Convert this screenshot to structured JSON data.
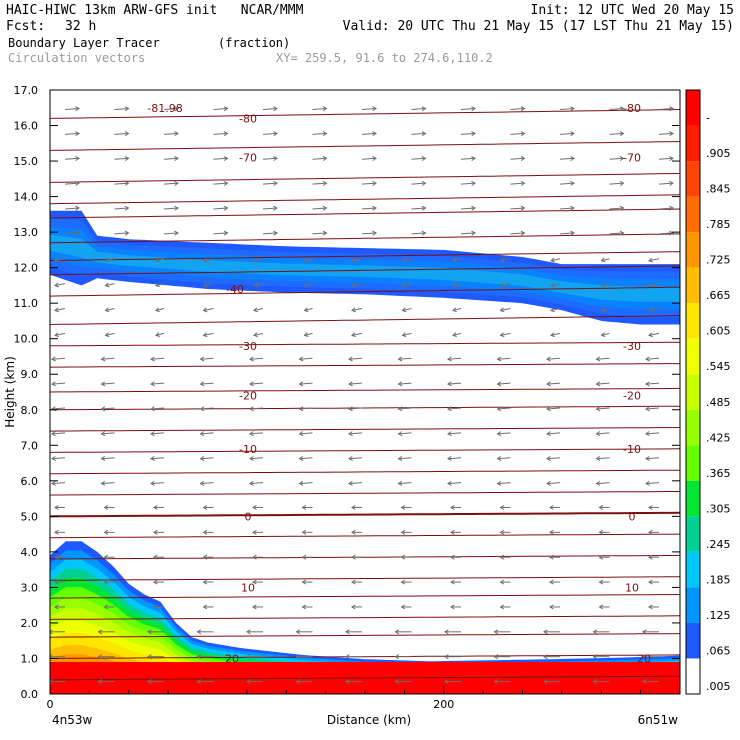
{
  "header": {
    "line1_left": "HAIC-HIWC 13km ARW-GFS init   NCAR/MMM",
    "line1_right": "Init: 12 UTC Wed 20 May 15",
    "fcst_label": "Fcst:",
    "fcst_value": "32 h",
    "valid": "Valid: 20 UTC Thu 21 May 15 (17 LST Thu 21 May 15)",
    "field_name": "Boundary Layer Tracer",
    "field_units": "(fraction)",
    "overlay_name": "Circulation vectors",
    "xy_range": "XY= 259.5, 91.6 to 274.6,110.2"
  },
  "colors": {
    "contour": "#7a1010",
    "vector": "#6e6e6e",
    "frame": "#000000"
  },
  "chart_data": {
    "type": "heatmap",
    "title": "Boundary Layer Tracer",
    "units": "(fraction)",
    "xlabel": "Distance (km)",
    "ylabel": "Height (km)",
    "xlim": [
      0,
      320
    ],
    "ylim": [
      0,
      17
    ],
    "x_ticks": [
      0,
      200
    ],
    "x_tick_labels": [
      "0",
      "200"
    ],
    "x_end_labels": [
      "4n53w",
      "6n51w"
    ],
    "y_ticks": [
      0,
      1,
      2,
      3,
      4,
      5,
      6,
      7,
      8,
      9,
      10,
      11,
      12,
      13,
      14,
      15,
      16,
      17
    ],
    "y_tick_labels": [
      "0.0",
      "1.0",
      "2.0",
      "3.0",
      "4.0",
      "5.0",
      "6.0",
      "7.0",
      "8.0",
      "9.0",
      "10.0",
      "11.0",
      "12.0",
      "13.0",
      "14.0",
      "15.0",
      "16.0",
      "17.0"
    ],
    "colorbar": {
      "levels": [
        "-",
        ".905",
        ".845",
        ".785",
        ".725",
        ".665",
        ".605",
        ".545",
        ".485",
        ".425",
        ".365",
        ".305",
        ".245",
        ".185",
        ".125",
        ".065",
        ".005"
      ],
      "colors": [
        "#ff0000",
        "#ff1e00",
        "#ff4600",
        "#ff6e00",
        "#ff9600",
        "#ffbe00",
        "#ffe600",
        "#f0ff00",
        "#c8ff00",
        "#96ff00",
        "#64ff00",
        "#00e632",
        "#00d296",
        "#00c8ff",
        "#0096ff",
        "#1e5aff",
        "#ffffff"
      ]
    },
    "bl_tracer": {
      "surface_layer": {
        "x": [
          0,
          8,
          16,
          24,
          32,
          40,
          48,
          56,
          64,
          72,
          80,
          96,
          112,
          128,
          160,
          192,
          224,
          256,
          288,
          320
        ],
        "top_km": [
          3.9,
          4.3,
          4.3,
          4.0,
          3.6,
          3.1,
          2.8,
          2.6,
          2.0,
          1.6,
          1.45,
          1.3,
          1.2,
          1.1,
          0.98,
          0.92,
          0.95,
          0.98,
          1.02,
          1.08
        ]
      },
      "upper_layer": {
        "x": [
          0,
          16,
          24,
          40,
          80,
          120,
          160,
          200,
          240,
          260,
          280,
          300,
          320
        ],
        "top_km": [
          13.6,
          13.6,
          12.9,
          12.8,
          12.7,
          12.6,
          12.55,
          12.5,
          12.3,
          12.1,
          12.1,
          12.1,
          12.1
        ],
        "bottom_km": [
          11.8,
          11.5,
          11.7,
          11.6,
          11.4,
          11.3,
          11.25,
          11.15,
          11.0,
          10.8,
          10.5,
          10.4,
          10.4
        ]
      }
    },
    "temperature_contours": {
      "levels": [
        -80,
        -70,
        -40,
        -30,
        -20,
        -10,
        0,
        10,
        20
      ],
      "labels": [
        "-81.98",
        "-80",
        "-70",
        "-40",
        "-30",
        "-20",
        "-10",
        "0",
        "10",
        "20"
      ],
      "heights_km": [
        16.2,
        15.3,
        14.4,
        13.8,
        13.4,
        12.7,
        12.2,
        11.8,
        11.2,
        10.4,
        9.8,
        9.2,
        8.5,
        8.0,
        7.4,
        6.8,
        6.2,
        5.6,
        5.0,
        4.4,
        3.8,
        3.2,
        2.7,
        2.1,
        1.6,
        1.0,
        0.4
      ]
    }
  }
}
